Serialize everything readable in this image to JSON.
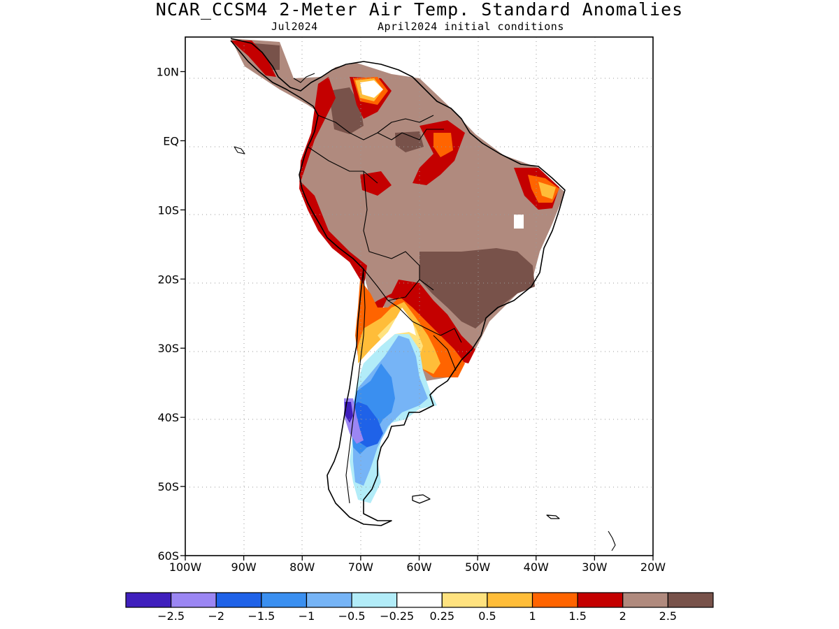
{
  "header": {
    "title": "NCAR_CCSM4 2-Meter Air Temp. Standard Anomalies",
    "subtitle_left": "Jul2024",
    "subtitle_right": "April2024 initial conditions"
  },
  "map": {
    "region": "South America",
    "lon_range": [
      -100,
      -20
    ],
    "lat_range": [
      -60,
      15
    ],
    "lat_labels": [
      {
        "lat": 10,
        "label": "10N"
      },
      {
        "lat": 0,
        "label": "EQ"
      },
      {
        "lat": -10,
        "label": "10S"
      },
      {
        "lat": -20,
        "label": "20S"
      },
      {
        "lat": -30,
        "label": "30S"
      },
      {
        "lat": -40,
        "label": "40S"
      },
      {
        "lat": -50,
        "label": "50S"
      },
      {
        "lat": -60,
        "label": "60S"
      }
    ],
    "lon_labels": [
      {
        "lon": -100,
        "label": "100W"
      },
      {
        "lon": -90,
        "label": "90W"
      },
      {
        "lon": -80,
        "label": "80W"
      },
      {
        "lon": -70,
        "label": "70W"
      },
      {
        "lon": -60,
        "label": "60W"
      },
      {
        "lon": -50,
        "label": "50W"
      },
      {
        "lon": -40,
        "label": "40W"
      },
      {
        "lon": -30,
        "label": "30W"
      },
      {
        "lon": -20,
        "label": "20W"
      }
    ],
    "grid": true
  },
  "colorbar": {
    "colors": [
      "#3f1fbd",
      "#9b86f3",
      "#1f62e8",
      "#3a8ff0",
      "#76b4f6",
      "#b2ecf8",
      "#ffffff",
      "#ffe27f",
      "#ffbd39",
      "#ff6400",
      "#c40000",
      "#b08a7e",
      "#78524a"
    ],
    "labels": [
      "-2.5",
      "-2",
      "-1.5",
      "-1",
      "-0.5",
      "-0.25",
      "0.25",
      "0.5",
      "1",
      "1.5",
      "2",
      "2.5"
    ]
  },
  "chart_data": {
    "type": "heatmap",
    "title": "NCAR_CCSM4 2-Meter Air Temp. Standard Anomalies",
    "subtitle": "Jul2024 — April2024 initial conditions",
    "x_axis": "longitude",
    "y_axis": "latitude",
    "xlim": [
      -100,
      -20
    ],
    "ylim": [
      -60,
      15
    ],
    "color_levels": [
      -2.5,
      -2,
      -1.5,
      -1,
      -0.5,
      -0.25,
      0.25,
      0.5,
      1,
      1.5,
      2,
      2.5
    ],
    "regions": [
      {
        "area": "northern South America / Amazon / central Brazil",
        "anomaly_range": "2 to >2.5"
      },
      {
        "area": "eastern Brazil interior",
        "anomaly_range": ">2.5"
      },
      {
        "area": "southern Bolivia / Paraguay / southern Brazil",
        "anomaly_range": "1 to 2"
      },
      {
        "area": "northern Argentina (Chaco)",
        "anomaly_range": "0.25 to 1"
      },
      {
        "area": "central Argentina",
        "anomaly_range": "-0.25 to -1"
      },
      {
        "area": "western Patagonia / central Chile",
        "anomaly_range": "-1.5 to -2.5"
      },
      {
        "area": "southern Patagonia",
        "anomaly_range": "-0.25 to -1"
      }
    ]
  }
}
